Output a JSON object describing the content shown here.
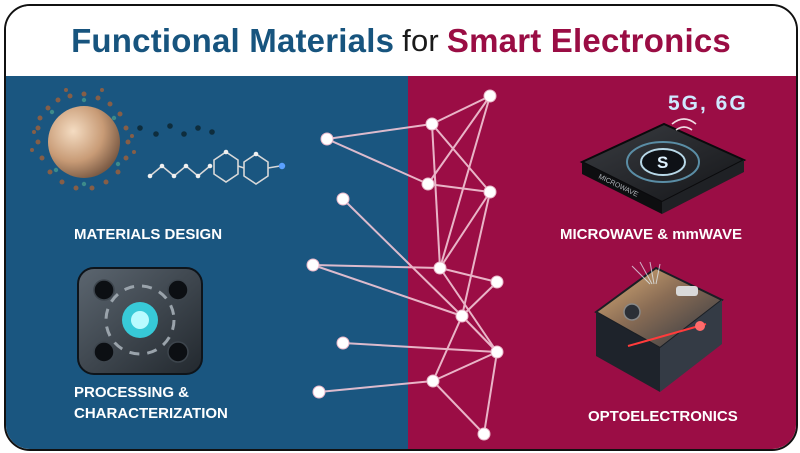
{
  "title": {
    "part1": "Functional Materials",
    "part2": "for",
    "part3": "Smart Electronics"
  },
  "labels": {
    "materials_design": "MATERIALS DESIGN",
    "processing_line1": "PROCESSING &",
    "processing_line2": "CHARACTERIZATION",
    "microwave": "MICROWAVE & mmWAVE",
    "optoelectronics": "OPTOELECTRONICS"
  },
  "device_tag": "5G, 6G",
  "chip_text": "MICROWAVE",
  "colors": {
    "left_panel": "#1a5680",
    "right_panel": "#9b0d45",
    "title_blue": "#17547e",
    "title_red": "#9a0d44",
    "network_line": "#f2c7d6"
  },
  "icons": [
    "nanoparticle-molecule-icon",
    "gear-cycle-icon",
    "microwave-chip-icon",
    "photonic-chip-icon"
  ]
}
